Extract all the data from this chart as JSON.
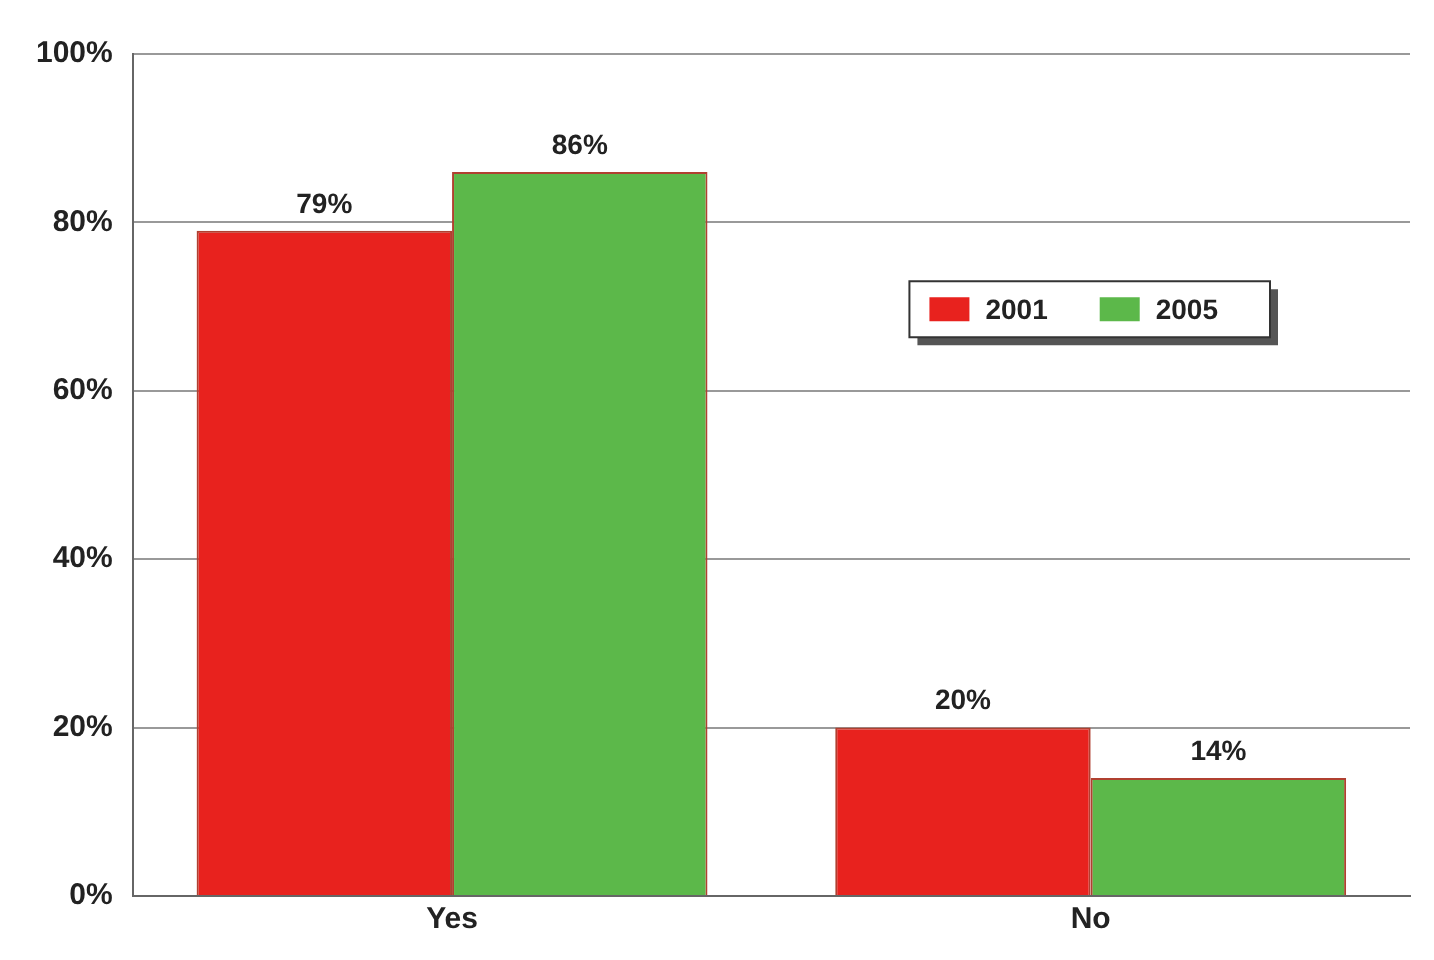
{
  "chart_data": {
    "type": "bar",
    "categories": [
      "Yes",
      "No"
    ],
    "series": [
      {
        "name": "2001",
        "color": "#e8221e",
        "values": [
          79,
          20
        ],
        "value_labels": [
          "79%",
          "20%"
        ]
      },
      {
        "name": "2005",
        "color": "#5cb84a",
        "values": [
          86,
          14
        ],
        "value_labels": [
          "86%",
          "14%"
        ]
      }
    ],
    "ylim": [
      0,
      100
    ],
    "yticks": [
      {
        "value": 0,
        "label": "0%"
      },
      {
        "value": 20,
        "label": "20%"
      },
      {
        "value": 40,
        "label": "40%"
      },
      {
        "value": 60,
        "label": "60%"
      },
      {
        "value": 80,
        "label": "80%"
      },
      {
        "value": 100,
        "label": "100%"
      }
    ],
    "grid": "y",
    "legend": "top right"
  }
}
